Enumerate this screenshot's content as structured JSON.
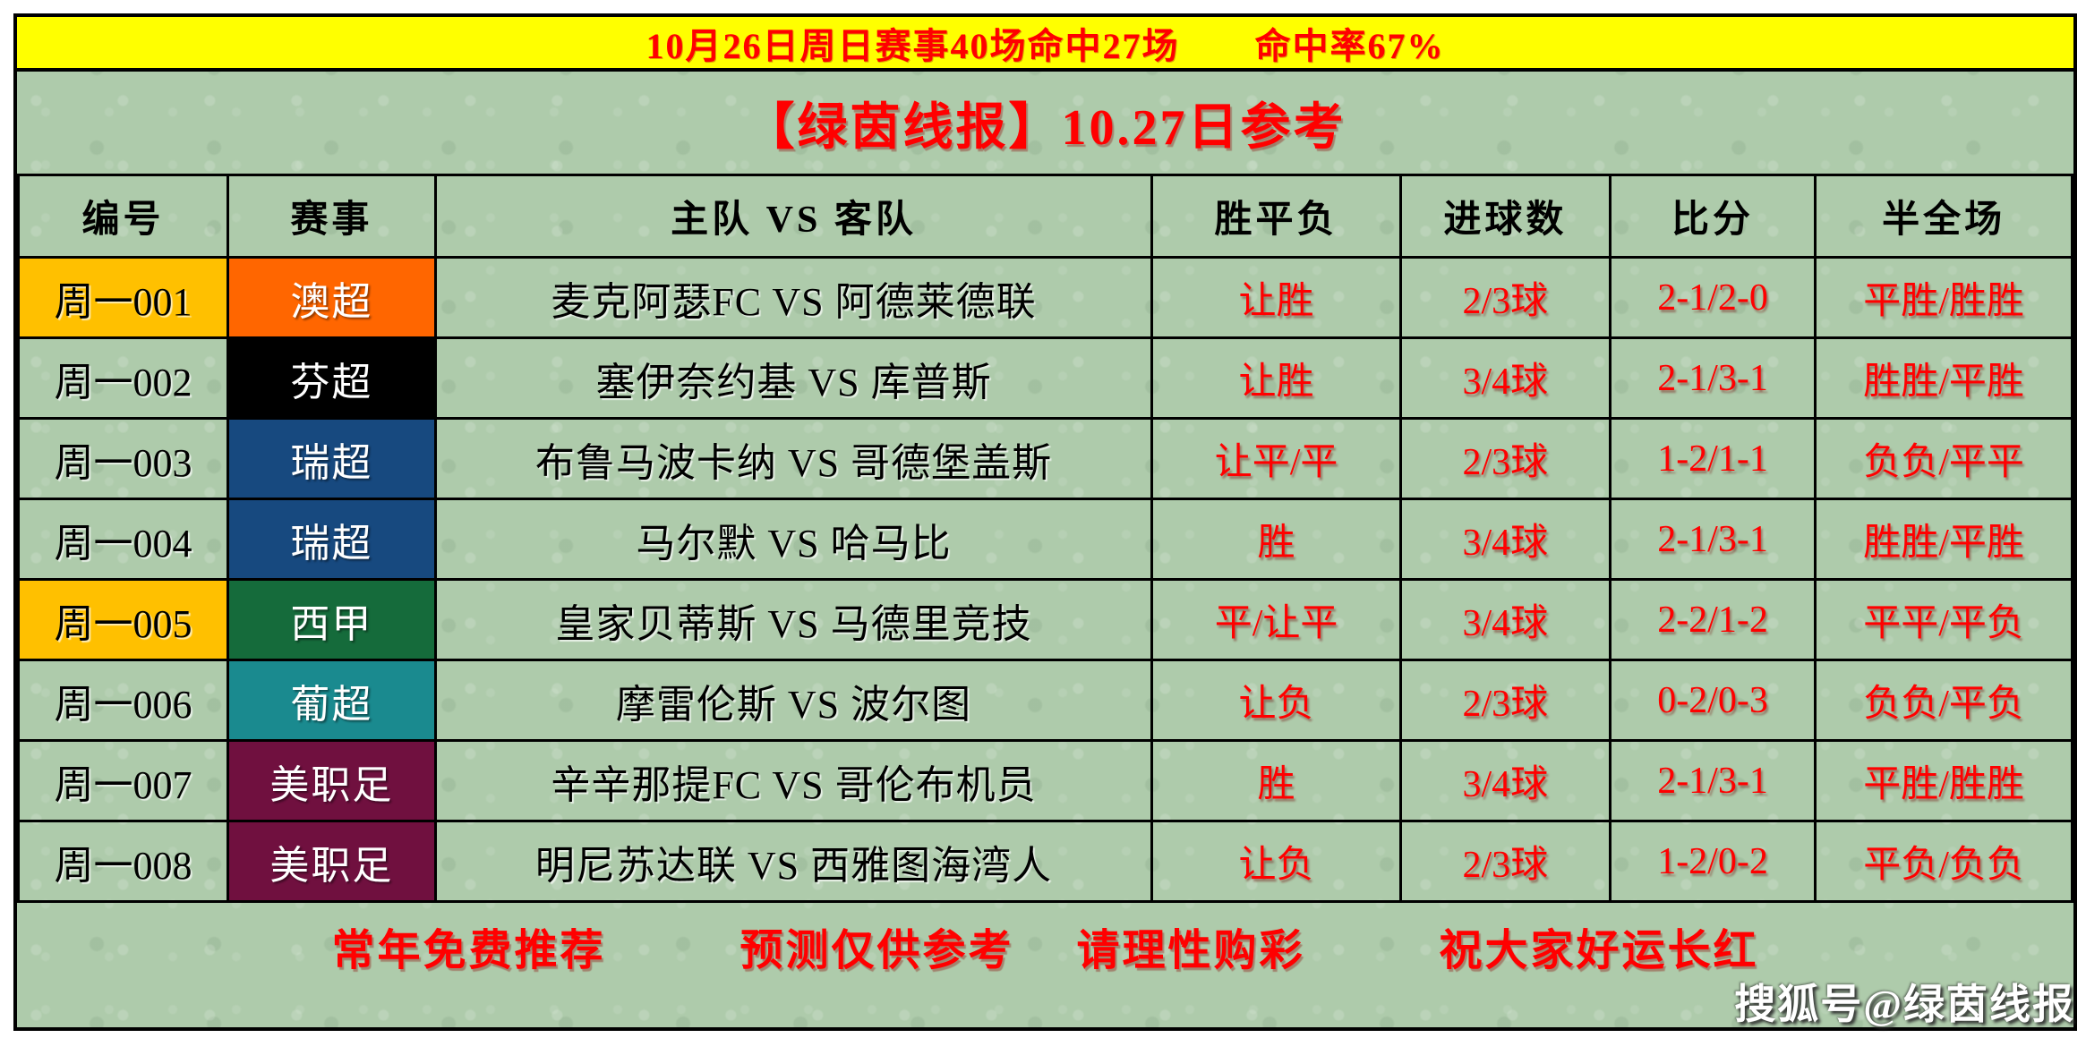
{
  "banner": {
    "text": "10月26日周日赛事40场命中27场　　命中率67%"
  },
  "title": {
    "text": "【绿茵线报】10.27日参考"
  },
  "table": {
    "headers": [
      "编号",
      "赛事",
      "主队 VS 客队",
      "胜平负",
      "进球数",
      "比分",
      "半全场"
    ],
    "rows": [
      {
        "id": "周一001",
        "id_bg": "#ffc000",
        "league": "澳超",
        "league_bg": "#ff6600",
        "match": "麦克阿瑟FC VS 阿德莱德联",
        "wdl": "让胜",
        "goals": "2/3球",
        "score": "2-1/2-0",
        "ht_ft": "平胜/胜胜"
      },
      {
        "id": "周一002",
        "id_bg": "",
        "league": "芬超",
        "league_bg": "#000000",
        "match": "塞伊奈约基 VS 库普斯",
        "wdl": "让胜",
        "goals": "3/4球",
        "score": "2-1/3-1",
        "ht_ft": "胜胜/平胜"
      },
      {
        "id": "周一003",
        "id_bg": "",
        "league": "瑞超",
        "league_bg": "#17497f",
        "match": "布鲁马波卡纳 VS 哥德堡盖斯",
        "wdl": "让平/平",
        "goals": "2/3球",
        "score": "1-2/1-1",
        "ht_ft": "负负/平平"
      },
      {
        "id": "周一004",
        "id_bg": "",
        "league": "瑞超",
        "league_bg": "#17497f",
        "match": "马尔默 VS 哈马比",
        "wdl": "胜",
        "goals": "3/4球",
        "score": "2-1/3-1",
        "ht_ft": "胜胜/平胜"
      },
      {
        "id": "周一005",
        "id_bg": "#ffc000",
        "league": "西甲",
        "league_bg": "#156b3b",
        "match": "皇家贝蒂斯 VS 马德里竞技",
        "wdl": "平/让平",
        "goals": "3/4球",
        "score": "2-2/1-2",
        "ht_ft": "平平/平负"
      },
      {
        "id": "周一006",
        "id_bg": "",
        "league": "葡超",
        "league_bg": "#1a8a8f",
        "match": "摩雷伦斯 VS 波尔图",
        "wdl": "让负",
        "goals": "2/3球",
        "score": "0-2/0-3",
        "ht_ft": "负负/平负"
      },
      {
        "id": "周一007",
        "id_bg": "",
        "league": "美职足",
        "league_bg": "#70103f",
        "match": "辛辛那提FC VS 哥伦布机员",
        "wdl": "胜",
        "goals": "3/4球",
        "score": "2-1/3-1",
        "ht_ft": "平胜/胜胜"
      },
      {
        "id": "周一008",
        "id_bg": "",
        "league": "美职足",
        "league_bg": "#70103f",
        "match": "明尼苏达联 VS 西雅图海湾人",
        "wdl": "让负",
        "goals": "2/3球",
        "score": "1-2/0-2",
        "ht_ft": "平负/负负"
      }
    ]
  },
  "footer": {
    "items": [
      "常年免费推荐",
      "预测仅供参考",
      "请理性购彩",
      "祝大家好运长红"
    ]
  },
  "watermark": {
    "text": "搜狐号@绿茵线报"
  },
  "colors": {
    "banner_bg": "#ffff00",
    "page_bg": "#aecbab",
    "accent_red": "#ff0000",
    "highlight_gold": "#ffc000",
    "border_black": "#000000"
  }
}
